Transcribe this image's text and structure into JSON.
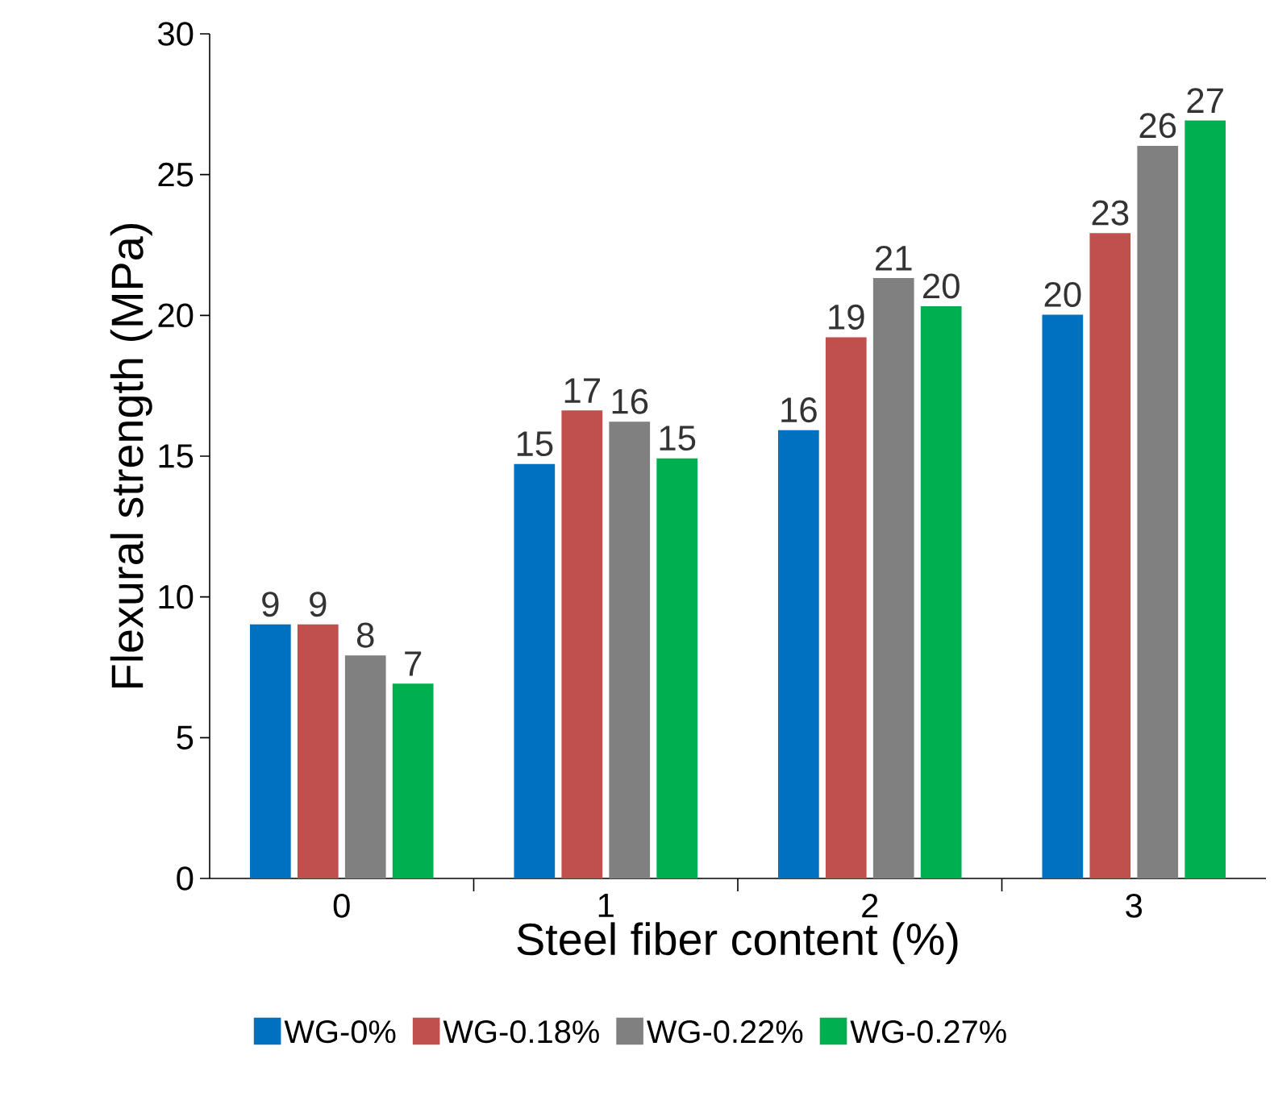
{
  "chart_data": {
    "type": "bar",
    "xlabel": "Steel fiber content (%)",
    "ylabel": "Flexural strength (MPa)",
    "categories": [
      "0",
      "1",
      "2",
      "3"
    ],
    "series": [
      {
        "name": "WG-0%",
        "color": "#0070c0",
        "values": [
          9,
          14.7,
          15.9,
          20.0
        ],
        "value_labels": [
          "9",
          "15",
          "16",
          "20"
        ]
      },
      {
        "name": "WG-0.18%",
        "color": "#c0504d",
        "values": [
          9,
          16.6,
          19.2,
          22.9
        ],
        "value_labels": [
          "9",
          "17",
          "19",
          "23"
        ]
      },
      {
        "name": "WG-0.22%",
        "color": "#808080",
        "values": [
          7.9,
          16.2,
          21.3,
          26.0
        ],
        "value_labels": [
          "8",
          "16",
          "21",
          "26"
        ]
      },
      {
        "name": "WG-0.27%",
        "color": "#00b050",
        "values": [
          6.9,
          14.9,
          20.3,
          26.9
        ],
        "value_labels": [
          "7",
          "15",
          "20",
          "27"
        ]
      }
    ],
    "ylim": [
      0,
      30
    ],
    "yticks": [
      0,
      5,
      10,
      15,
      20,
      25,
      30
    ],
    "grid": false,
    "legend": "bottom"
  }
}
